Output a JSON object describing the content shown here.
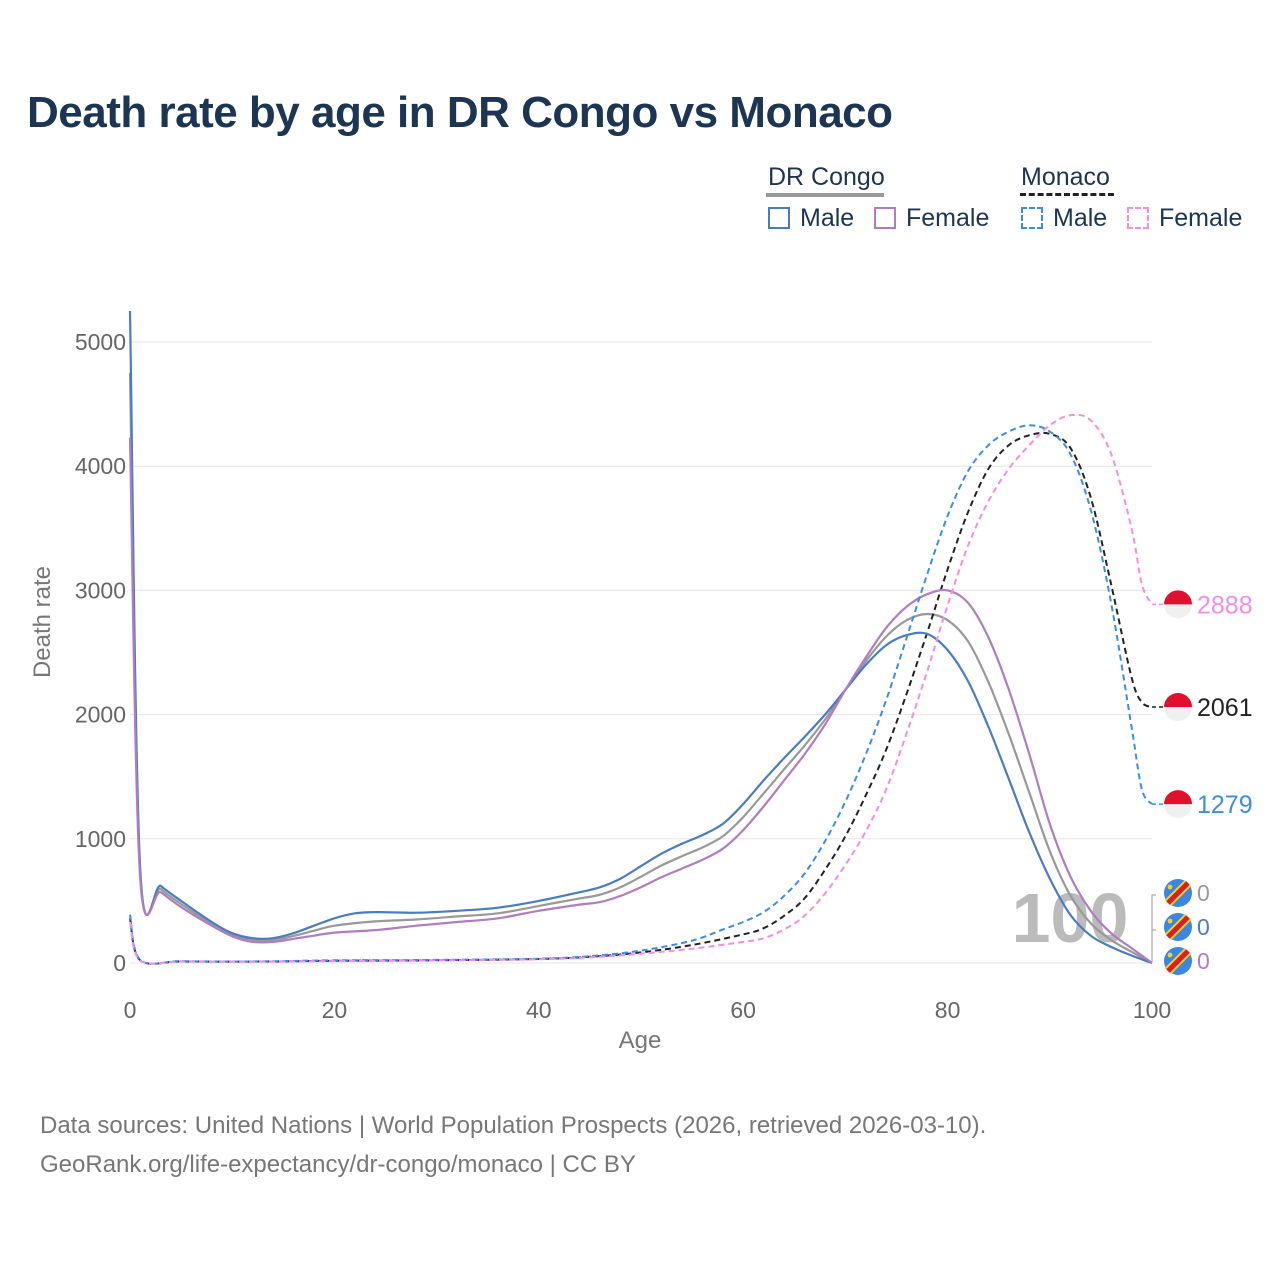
{
  "title": "Death rate by age in DR Congo vs Monaco",
  "legend": {
    "groups": [
      {
        "country": "DR Congo",
        "underline_style": "solid",
        "underline_color": "#999999",
        "items": [
          {
            "label": "Male",
            "color": "#4a7cc1",
            "style": "solid"
          },
          {
            "label": "Female",
            "color": "#b27cc1",
            "style": "solid"
          }
        ]
      },
      {
        "country": "Monaco",
        "underline_style": "dashed",
        "underline_color": "#222222",
        "items": [
          {
            "label": "Male",
            "color": "#3a8ee8",
            "style": "dashed"
          },
          {
            "label": "Female",
            "color": "#f58ce8",
            "style": "dashed"
          }
        ]
      }
    ]
  },
  "watermark_age": "100",
  "chart_data": {
    "type": "line",
    "title": "Death rate by age in DR Congo vs Monaco",
    "xlabel": "Age",
    "ylabel": "Death rate",
    "xlim": [
      0,
      100
    ],
    "ylim": [
      0,
      5250
    ],
    "x_ticks": [
      0,
      20,
      40,
      60,
      80,
      100
    ],
    "y_ticks": [
      0,
      1000,
      2000,
      3000,
      4000,
      5000
    ],
    "grid": true,
    "series": [
      {
        "name": "DR Congo Male",
        "country": "DR Congo",
        "sex": "Male",
        "color": "#4a7cc1",
        "style": "solid",
        "end_label": "0",
        "points": [
          [
            0,
            5250
          ],
          [
            1,
            760
          ],
          [
            3,
            620
          ],
          [
            5,
            500
          ],
          [
            8,
            330
          ],
          [
            10,
            240
          ],
          [
            12,
            200
          ],
          [
            14,
            200
          ],
          [
            16,
            240
          ],
          [
            18,
            300
          ],
          [
            20,
            360
          ],
          [
            22,
            400
          ],
          [
            24,
            410
          ],
          [
            28,
            405
          ],
          [
            32,
            420
          ],
          [
            36,
            445
          ],
          [
            40,
            500
          ],
          [
            44,
            570
          ],
          [
            46,
            610
          ],
          [
            48,
            680
          ],
          [
            50,
            780
          ],
          [
            52,
            880
          ],
          [
            54,
            960
          ],
          [
            56,
            1030
          ],
          [
            58,
            1120
          ],
          [
            60,
            1280
          ],
          [
            62,
            1470
          ],
          [
            64,
            1650
          ],
          [
            66,
            1820
          ],
          [
            68,
            2000
          ],
          [
            70,
            2200
          ],
          [
            72,
            2400
          ],
          [
            74,
            2560
          ],
          [
            76,
            2640
          ],
          [
            78,
            2650
          ],
          [
            80,
            2520
          ],
          [
            82,
            2270
          ],
          [
            84,
            1900
          ],
          [
            86,
            1480
          ],
          [
            88,
            1050
          ],
          [
            90,
            680
          ],
          [
            92,
            390
          ],
          [
            94,
            220
          ],
          [
            96,
            130
          ],
          [
            98,
            60
          ],
          [
            100,
            0
          ]
        ]
      },
      {
        "name": "DR Congo Female",
        "country": "DR Congo",
        "sex": "Female",
        "color": "#b27cc1",
        "style": "solid",
        "end_label": "0",
        "points": [
          [
            0,
            4230
          ],
          [
            1,
            680
          ],
          [
            3,
            570
          ],
          [
            5,
            450
          ],
          [
            8,
            300
          ],
          [
            10,
            215
          ],
          [
            12,
            170
          ],
          [
            14,
            170
          ],
          [
            16,
            195
          ],
          [
            18,
            220
          ],
          [
            20,
            245
          ],
          [
            24,
            265
          ],
          [
            28,
            300
          ],
          [
            32,
            330
          ],
          [
            36,
            360
          ],
          [
            40,
            420
          ],
          [
            44,
            470
          ],
          [
            46,
            490
          ],
          [
            48,
            540
          ],
          [
            50,
            610
          ],
          [
            52,
            690
          ],
          [
            54,
            760
          ],
          [
            56,
            830
          ],
          [
            58,
            920
          ],
          [
            60,
            1070
          ],
          [
            62,
            1260
          ],
          [
            64,
            1470
          ],
          [
            66,
            1680
          ],
          [
            68,
            1920
          ],
          [
            70,
            2200
          ],
          [
            72,
            2460
          ],
          [
            74,
            2700
          ],
          [
            76,
            2870
          ],
          [
            78,
            2970
          ],
          [
            80,
            3000
          ],
          [
            82,
            2900
          ],
          [
            84,
            2620
          ],
          [
            86,
            2200
          ],
          [
            88,
            1680
          ],
          [
            90,
            1120
          ],
          [
            92,
            700
          ],
          [
            94,
            420
          ],
          [
            96,
            240
          ],
          [
            98,
            120
          ],
          [
            100,
            0
          ]
        ]
      },
      {
        "name": "DR Congo Total",
        "country": "DR Congo",
        "sex": "Total",
        "color": "#999999",
        "style": "solid",
        "end_label": "0",
        "points": [
          [
            0,
            4750
          ],
          [
            1,
            720
          ],
          [
            3,
            595
          ],
          [
            5,
            475
          ],
          [
            8,
            315
          ],
          [
            10,
            228
          ],
          [
            12,
            185
          ],
          [
            14,
            185
          ],
          [
            16,
            218
          ],
          [
            18,
            260
          ],
          [
            20,
            300
          ],
          [
            24,
            335
          ],
          [
            28,
            350
          ],
          [
            32,
            375
          ],
          [
            36,
            400
          ],
          [
            40,
            460
          ],
          [
            44,
            520
          ],
          [
            46,
            550
          ],
          [
            48,
            610
          ],
          [
            50,
            695
          ],
          [
            52,
            785
          ],
          [
            54,
            860
          ],
          [
            56,
            930
          ],
          [
            58,
            1020
          ],
          [
            60,
            1175
          ],
          [
            62,
            1365
          ],
          [
            64,
            1560
          ],
          [
            66,
            1750
          ],
          [
            68,
            1960
          ],
          [
            70,
            2200
          ],
          [
            72,
            2430
          ],
          [
            74,
            2630
          ],
          [
            76,
            2760
          ],
          [
            78,
            2810
          ],
          [
            80,
            2760
          ],
          [
            82,
            2590
          ],
          [
            84,
            2260
          ],
          [
            86,
            1840
          ],
          [
            88,
            1370
          ],
          [
            90,
            900
          ],
          [
            92,
            545
          ],
          [
            94,
            320
          ],
          [
            96,
            185
          ],
          [
            98,
            90
          ],
          [
            100,
            0
          ]
        ]
      },
      {
        "name": "Monaco Male",
        "country": "Monaco",
        "sex": "Male",
        "color": "#3a8ee8",
        "style": "dashed",
        "end_label": "1279",
        "points": [
          [
            0,
            390
          ],
          [
            1,
            25
          ],
          [
            5,
            15
          ],
          [
            10,
            12
          ],
          [
            15,
            15
          ],
          [
            20,
            22
          ],
          [
            30,
            25
          ],
          [
            40,
            35
          ],
          [
            45,
            55
          ],
          [
            50,
            100
          ],
          [
            55,
            180
          ],
          [
            58,
            270
          ],
          [
            60,
            330
          ],
          [
            62,
            410
          ],
          [
            64,
            540
          ],
          [
            66,
            720
          ],
          [
            68,
            980
          ],
          [
            70,
            1300
          ],
          [
            72,
            1680
          ],
          [
            74,
            2120
          ],
          [
            76,
            2620
          ],
          [
            78,
            3130
          ],
          [
            80,
            3600
          ],
          [
            82,
            3960
          ],
          [
            84,
            4170
          ],
          [
            86,
            4280
          ],
          [
            88,
            4330
          ],
          [
            90,
            4280
          ],
          [
            92,
            4100
          ],
          [
            94,
            3650
          ],
          [
            96,
            2900
          ],
          [
            98,
            1900
          ],
          [
            99,
            1400
          ],
          [
            100,
            1279
          ]
        ]
      },
      {
        "name": "Monaco Female",
        "country": "Monaco",
        "sex": "Female",
        "color": "#f58ce8",
        "style": "dashed",
        "end_label": "2888",
        "points": [
          [
            0,
            330
          ],
          [
            1,
            20
          ],
          [
            5,
            12
          ],
          [
            10,
            10
          ],
          [
            15,
            12
          ],
          [
            20,
            15
          ],
          [
            30,
            20
          ],
          [
            40,
            30
          ],
          [
            45,
            45
          ],
          [
            50,
            75
          ],
          [
            55,
            115
          ],
          [
            60,
            170
          ],
          [
            62,
            200
          ],
          [
            64,
            270
          ],
          [
            66,
            380
          ],
          [
            68,
            560
          ],
          [
            70,
            790
          ],
          [
            72,
            1060
          ],
          [
            74,
            1400
          ],
          [
            76,
            1850
          ],
          [
            78,
            2350
          ],
          [
            80,
            2880
          ],
          [
            82,
            3360
          ],
          [
            84,
            3720
          ],
          [
            86,
            3980
          ],
          [
            88,
            4170
          ],
          [
            90,
            4330
          ],
          [
            92,
            4410
          ],
          [
            94,
            4370
          ],
          [
            96,
            4100
          ],
          [
            98,
            3500
          ],
          [
            99,
            3050
          ],
          [
            100,
            2888
          ]
        ]
      },
      {
        "name": "Monaco Total",
        "country": "Monaco",
        "sex": "Total",
        "color": "#222222",
        "style": "dashed",
        "end_label": "2061",
        "points": [
          [
            0,
            360
          ],
          [
            1,
            22
          ],
          [
            5,
            13
          ],
          [
            10,
            11
          ],
          [
            15,
            13
          ],
          [
            20,
            18
          ],
          [
            30,
            22
          ],
          [
            40,
            32
          ],
          [
            45,
            50
          ],
          [
            50,
            85
          ],
          [
            55,
            145
          ],
          [
            60,
            230
          ],
          [
            62,
            280
          ],
          [
            64,
            380
          ],
          [
            66,
            520
          ],
          [
            68,
            750
          ],
          [
            70,
            1020
          ],
          [
            72,
            1350
          ],
          [
            74,
            1720
          ],
          [
            76,
            2170
          ],
          [
            78,
            2660
          ],
          [
            80,
            3170
          ],
          [
            82,
            3630
          ],
          [
            84,
            3980
          ],
          [
            86,
            4170
          ],
          [
            88,
            4250
          ],
          [
            90,
            4260
          ],
          [
            92,
            4150
          ],
          [
            94,
            3750
          ],
          [
            96,
            3050
          ],
          [
            98,
            2300
          ],
          [
            99,
            2100
          ],
          [
            100,
            2061
          ]
        ]
      }
    ]
  },
  "footer": {
    "sources": "Data sources: United Nations | World Population Prospects (2026, retrieved 2026-03-10).",
    "link": "GeoRank.org/life-expectancy/dr-congo/monaco | CC BY"
  }
}
